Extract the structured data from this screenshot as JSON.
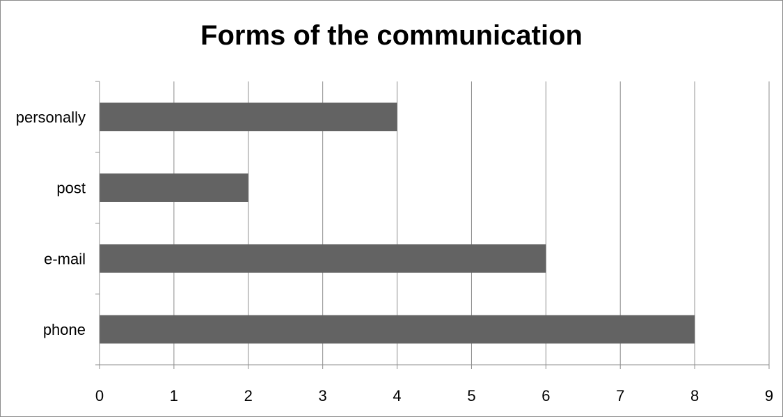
{
  "chart_data": {
    "type": "bar",
    "orientation": "horizontal",
    "title": "Forms of the communication",
    "categories": [
      "phone",
      "e-mail",
      "post",
      "personally"
    ],
    "values": [
      8,
      6,
      2,
      4
    ],
    "xlim": [
      0,
      9
    ],
    "x_ticks": [
      "0",
      "1",
      "2",
      "3",
      "4",
      "5",
      "6",
      "7",
      "8",
      "9"
    ],
    "xlabel": "",
    "ylabel": "",
    "grid": "vertical",
    "legend": "none",
    "bar_color": "#636363",
    "gridline_color": "#8c8c8c"
  }
}
